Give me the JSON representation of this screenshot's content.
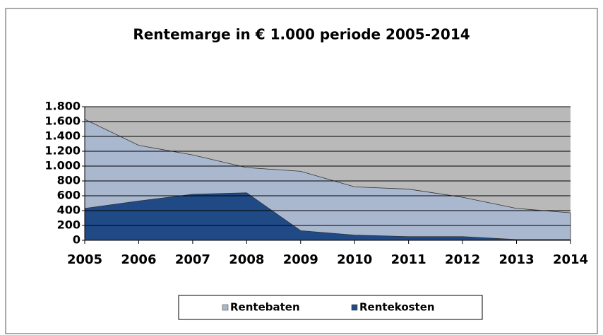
{
  "chart_data": {
    "type": "area",
    "title": "Rentemarge in € 1.000 periode 2005-2014",
    "x": [
      2005,
      2006,
      2007,
      2008,
      2009,
      2010,
      2011,
      2012,
      2013,
      2014
    ],
    "xlim": [
      2005,
      2014
    ],
    "series": [
      {
        "name": "Rentebaten",
        "color": "#aab8cf",
        "values": [
          1630,
          1280,
          1150,
          980,
          930,
          720,
          690,
          580,
          430,
          370
        ]
      },
      {
        "name": "Rentekosten",
        "color": "#1f4a86",
        "values": [
          430,
          530,
          620,
          640,
          130,
          70,
          50,
          50,
          10,
          10
        ]
      }
    ],
    "ylim": [
      0,
      1800
    ],
    "yticks": [
      0,
      200,
      400,
      600,
      800,
      {
        "value": 1000,
        "label": "1.000"
      },
      {
        "value": 1200,
        "label": "1.200"
      },
      {
        "value": 1400,
        "label": "1.400"
      },
      {
        "value": 1600,
        "label": "1.600"
      },
      {
        "value": 1800,
        "label": "1.800"
      }
    ],
    "grid": true,
    "legend": "bottom",
    "plot_background": "#b9b9b9"
  }
}
